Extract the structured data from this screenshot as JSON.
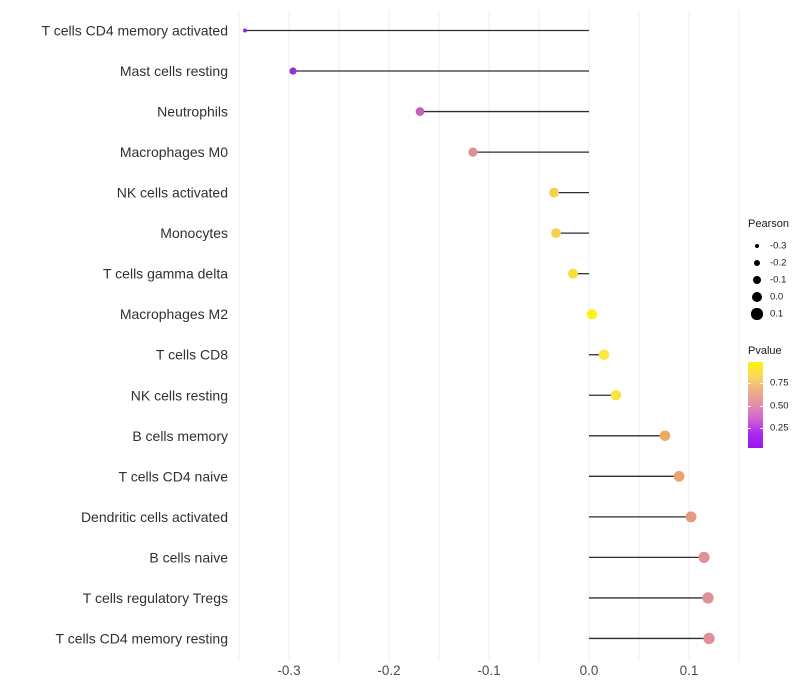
{
  "chart_data": {
    "type": "scatter",
    "subtype": "lollipop",
    "title": "",
    "xlabel": "",
    "ylabel": "",
    "xlim": [
      -0.353,
      0.152
    ],
    "x_ticks": [
      -0.3,
      -0.2,
      -0.1,
      0.0,
      0.1
    ],
    "x_tick_labels": [
      "-0.3",
      "-0.2",
      "-0.1",
      "0.0",
      "0.1"
    ],
    "gridlines": [
      -0.35,
      -0.3,
      -0.25,
      -0.2,
      -0.15,
      -0.1,
      -0.05,
      0.0,
      0.05,
      0.1,
      0.15
    ],
    "grid_on": true,
    "points": [
      {
        "label": "T cells CD4 memory activated",
        "pearson": -0.344,
        "color": "#8e2fd9",
        "radius": 2.0
      },
      {
        "label": "Mast cells resting",
        "pearson": -0.296,
        "color": "#9632d4",
        "radius": 3.6
      },
      {
        "label": "Neutrophils",
        "pearson": -0.169,
        "color": "#c361b7",
        "radius": 4.4
      },
      {
        "label": "Macrophages M0",
        "pearson": -0.116,
        "color": "#e28e8e",
        "radius": 4.6
      },
      {
        "label": "NK cells activated",
        "pearson": -0.035,
        "color": "#f3d14b",
        "radius": 4.9
      },
      {
        "label": "Monocytes",
        "pearson": -0.033,
        "color": "#f3d14b",
        "radius": 4.9
      },
      {
        "label": "T cells gamma delta",
        "pearson": -0.016,
        "color": "#f6e038",
        "radius": 5.0
      },
      {
        "label": "Macrophages M2",
        "pearson": 0.003,
        "color": "#fdf40d",
        "radius": 5.1
      },
      {
        "label": "T cells CD8",
        "pearson": 0.015,
        "color": "#f9e93a",
        "radius": 5.2
      },
      {
        "label": "NK cells resting",
        "pearson": 0.027,
        "color": "#f7e43e",
        "radius": 5.2
      },
      {
        "label": "B cells memory",
        "pearson": 0.076,
        "color": "#edaa61",
        "radius": 5.3
      },
      {
        "label": "T cells CD4 naive",
        "pearson": 0.09,
        "color": "#eba26b",
        "radius": 5.4
      },
      {
        "label": "Dendritic cells activated",
        "pearson": 0.102,
        "color": "#e79a81",
        "radius": 5.5
      },
      {
        "label": "B cells naive",
        "pearson": 0.115,
        "color": "#e19097",
        "radius": 5.6
      },
      {
        "label": "T cells regulatory  Tregs",
        "pearson": 0.119,
        "color": "#e19099",
        "radius": 5.7
      },
      {
        "label": "T cells CD4 memory resting",
        "pearson": 0.12,
        "color": "#e19099",
        "radius": 5.7
      }
    ],
    "legend_size": {
      "title": "Pearson",
      "entries": [
        {
          "label": "-0.3",
          "radius": 2.2
        },
        {
          "label": "-0.2",
          "radius": 3.3
        },
        {
          "label": "-0.1",
          "radius": 4.3
        },
        {
          "label": "0.0",
          "radius": 5.2
        },
        {
          "label": "0.1",
          "radius": 5.6
        }
      ],
      "dot_color": "#000000"
    },
    "legend_color": {
      "title": "Pvalue",
      "tick_labels": [
        "0.75",
        "0.50",
        "0.25"
      ],
      "gradient_stops": [
        "#fdf405",
        "#f8d95c",
        "#efae88",
        "#e48dad",
        "#cf62cf",
        "#a928ee",
        "#9b16f0"
      ]
    },
    "style_colors": {
      "grid": "#ececec",
      "stem": "#2e2e2e",
      "axis_text": "#4d4d4d",
      "category_text": "#303030"
    }
  }
}
